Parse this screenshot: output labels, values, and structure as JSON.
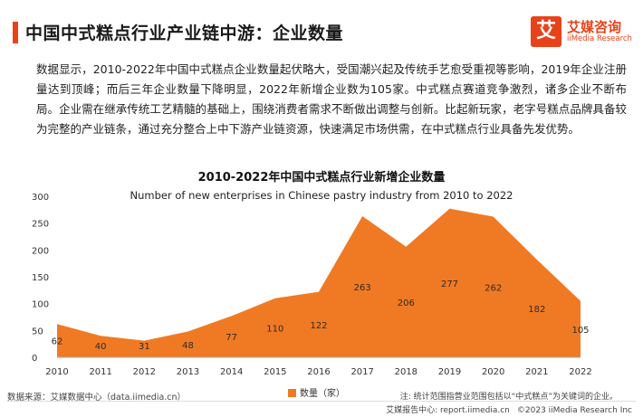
{
  "header": {
    "title": "中国中式糕点行业产业链中游：企业数量"
  },
  "logo": {
    "mark": "艾",
    "name_cn": "艾媒咨询",
    "name_en": "iiMedia Research"
  },
  "body_text": "数据显示，2010-2022年中国中式糕点企业数量起伏略大，受国潮兴起及传统手艺愈受重视等影响，2019年企业注册量达到顶峰；而后三年企业数量下降明显，2022年新增企业数为105家。中式糕点赛道竞争激烈，诸多企业不断布局。企业需在继承传统工艺精髓的基础上，围绕消费者需求不断做出调整与创新。比起新玩家，老字号糕点品牌具备较为完整的产业链条，通过充分整合上中下游产业链资源，快速满足市场供需，在中式糕点行业具备先发优势。",
  "chart_data": {
    "type": "area",
    "title": "2010-2022年中国中式糕点行业新增企业数量",
    "subtitle": "Number of new enterprises in Chinese pastry industry from 2010 to 2022",
    "categories": [
      "2010",
      "2011",
      "2012",
      "2013",
      "2014",
      "2015",
      "2016",
      "2017",
      "2018",
      "2019",
      "2020",
      "2021",
      "2022"
    ],
    "series": [
      {
        "name": "数量（家）",
        "values": [
          62,
          40,
          31,
          48,
          77,
          110,
          122,
          263,
          206,
          277,
          262,
          182,
          105
        ]
      }
    ],
    "ylim": [
      0,
      300
    ],
    "yticks": [
      0,
      50,
      100,
      150,
      200,
      250,
      300
    ],
    "color": "#f07a23",
    "label_color": "#2b2b2b",
    "legend_position": "bottom-center"
  },
  "footer": {
    "source": "数据来源：艾媒数据中心（data.iimedia.cn）",
    "note": "注: 统计范围指营业范围包括以“中式糕点”为关键词的企业。",
    "report_center": "艾媒报告中心: report.iimedia.cn",
    "copyright": "©2023  iiMedia Research  Inc"
  }
}
